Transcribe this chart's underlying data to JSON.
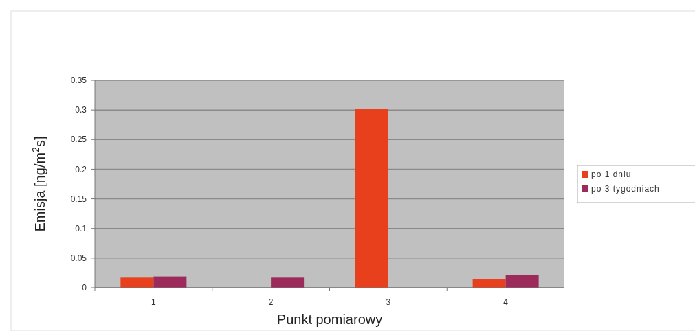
{
  "chart_data": {
    "type": "bar",
    "xlabel": "Punkt pomiarowy",
    "ylabel": "Emisja [ng/m$^{2}$s]",
    "categories": [
      "1",
      "2",
      "3",
      "4"
    ],
    "series": [
      {
        "name": "po 1 dniu",
        "color": "#e8401c",
        "values": [
          0.017,
          null,
          0.302,
          0.015
        ]
      },
      {
        "name": "po 3 tygodniach",
        "color": "#9c2a5a",
        "values": [
          0.019,
          0.017,
          null,
          0.022
        ]
      }
    ],
    "ylim": [
      0,
      0.35
    ],
    "yticks": [
      0,
      0.05,
      0.1,
      0.15,
      0.2,
      0.25,
      0.3,
      0.35
    ],
    "grid": "y",
    "legend": "right"
  }
}
